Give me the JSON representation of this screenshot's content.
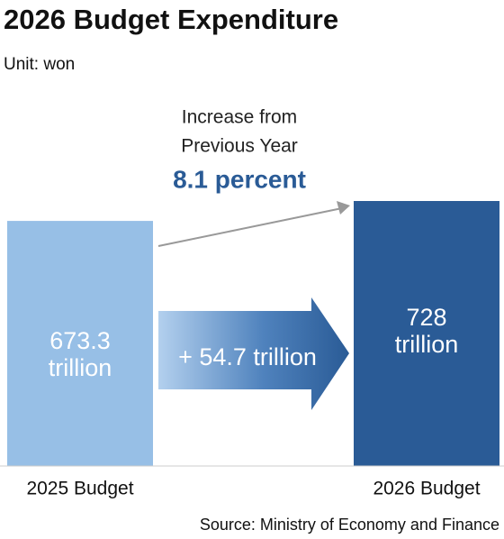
{
  "chart_data": {
    "type": "bar",
    "title": "2026 Budget Expenditure",
    "subtitle": "Unit: won",
    "annotation_lines": [
      "Increase from",
      "Previous Year"
    ],
    "percent_label": "8.1 percent",
    "change_label": "+ 54.7 trillion",
    "source": "Source: Ministry of Economy and Finance",
    "categories": [
      "2025 Budget",
      "2026 Budget"
    ],
    "values": [
      673.3,
      728
    ],
    "value_labels": [
      "673.3 trillion",
      "728 trillion"
    ],
    "colors": [
      "#97bfe6",
      "#2a5b96"
    ]
  }
}
